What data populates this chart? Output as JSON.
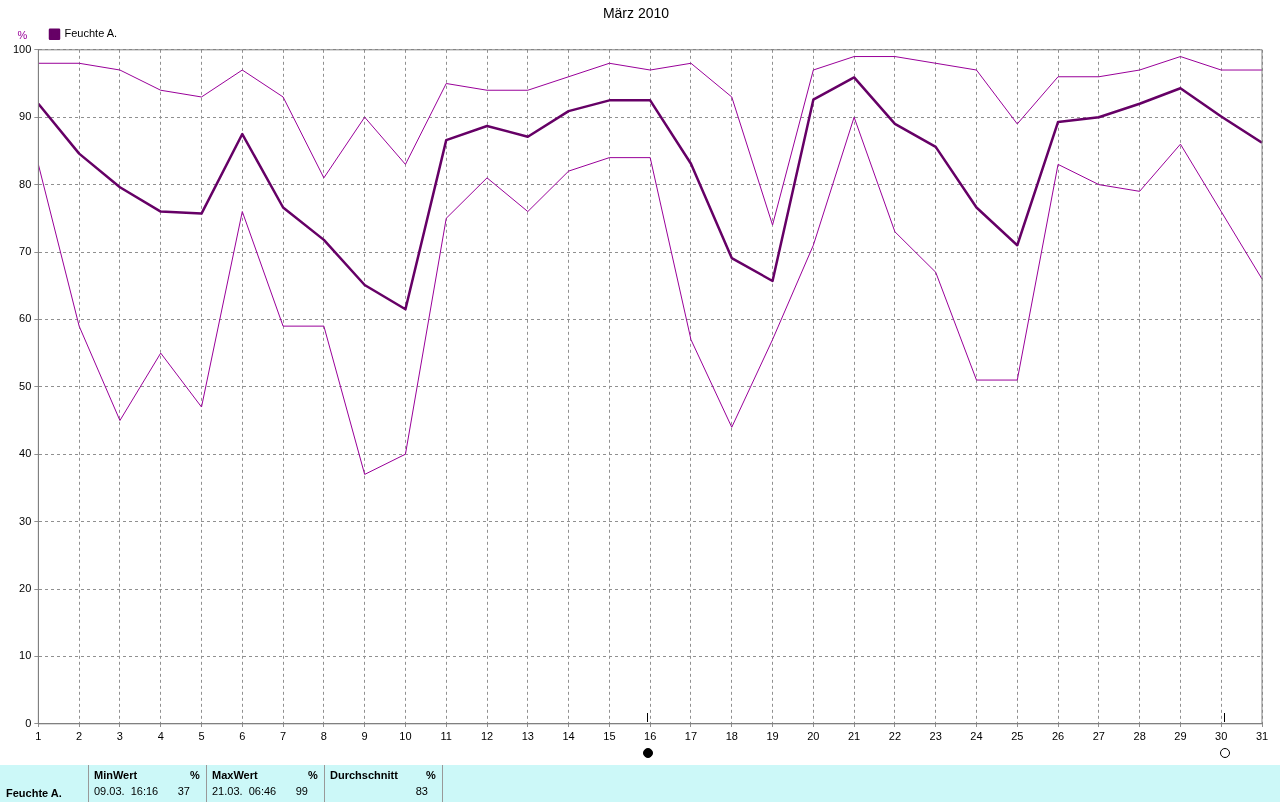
{
  "chart_data": {
    "type": "line",
    "title": "März 2010",
    "ylabel": "%",
    "x": [
      1,
      2,
      3,
      4,
      5,
      6,
      7,
      8,
      9,
      10,
      11,
      12,
      13,
      14,
      15,
      16,
      17,
      18,
      19,
      20,
      21,
      22,
      23,
      24,
      25,
      26,
      27,
      28,
      29,
      30,
      31
    ],
    "xlim": [
      1,
      31
    ],
    "xticks": [
      1,
      2,
      3,
      4,
      5,
      6,
      7,
      8,
      9,
      10,
      11,
      12,
      13,
      14,
      15,
      16,
      17,
      18,
      19,
      20,
      21,
      22,
      23,
      24,
      25,
      26,
      27,
      28,
      29,
      30,
      31
    ],
    "ylim": [
      0,
      100
    ],
    "yticks": [
      0,
      10,
      20,
      30,
      40,
      50,
      60,
      70,
      80,
      90,
      100
    ],
    "grid": true,
    "legend": "top left",
    "marker": "none",
    "line_style": "solid",
    "series": [
      {
        "color": "#990099",
        "values": [
          98,
          98,
          97,
          94,
          93,
          97,
          93,
          81,
          90,
          83,
          95,
          94,
          94,
          96,
          98,
          97,
          98,
          93,
          74,
          97,
          99,
          99,
          98,
          97,
          89,
          96,
          96,
          97,
          99,
          97,
          97
        ]
      },
      {
        "name": "Feuchte A.",
        "color": "#660066",
        "values": [
          92,
          84.6,
          79.6,
          76,
          75.7,
          87.5,
          76.6,
          71.8,
          65.1,
          61.5,
          86.6,
          88.7,
          87.1,
          90.9,
          92.5,
          92.5,
          83.1,
          69.1,
          65.7,
          92.6,
          95.9,
          89,
          85.6,
          76.6,
          71,
          89.3,
          90,
          92,
          94.3,
          90.1,
          86.2
        ]
      },
      {
        "color": "#990099",
        "values": [
          83,
          59,
          45,
          55,
          47,
          76,
          59,
          59,
          37,
          40,
          75,
          81,
          76,
          82,
          84,
          84,
          57,
          44,
          57,
          71,
          90,
          73,
          67,
          51,
          51,
          83,
          80,
          79,
          86,
          76,
          66
        ]
      }
    ],
    "annotations": [
      "Feuchte A.",
      "MinWert",
      "%",
      "09.03.  16:16",
      "37",
      "MaxWert",
      "%",
      "21.03.  06:46",
      "99",
      "Durchschnitt",
      "%",
      "83"
    ]
  }
}
